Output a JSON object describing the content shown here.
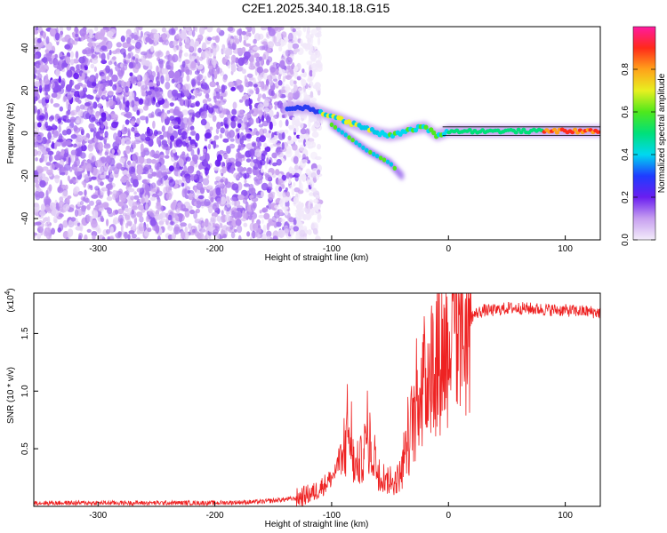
{
  "title": "C2E1.2025.340.18.18.G15",
  "chart_data": [
    {
      "type": "heatmap",
      "xlabel": "Height of straight line (km)",
      "ylabel": "Frequency (Hz)",
      "xlim": [
        -355,
        130
      ],
      "ylim": [
        -50,
        50
      ],
      "xticks": [
        -300,
        -200,
        -100,
        0,
        100
      ],
      "yticks": [
        -40,
        -20,
        0,
        20,
        40
      ],
      "colorbar": {
        "label": "Normalized spectral amplitude",
        "range": [
          0,
          1
        ],
        "ticks": [
          0.0,
          0.2,
          0.4,
          0.6,
          0.8
        ]
      },
      "ridge": {
        "x": [
          -140,
          -130,
          -120,
          -110,
          -100,
          -90,
          -80,
          -70,
          -60,
          -50,
          -40,
          -30,
          -20,
          -10,
          0,
          20,
          50,
          80,
          110,
          130
        ],
        "y": [
          11,
          12,
          12,
          10,
          8,
          6,
          4,
          2,
          0,
          -1,
          0,
          2,
          3,
          -1,
          1,
          1,
          1,
          1,
          1,
          1
        ]
      },
      "branch": {
        "x": [
          -100,
          -90,
          -80,
          -70,
          -60,
          -50,
          -40
        ],
        "y": [
          4,
          0,
          -4,
          -8,
          -11,
          -14,
          -20
        ]
      }
    },
    {
      "type": "line",
      "xlabel": "Height of straight line (km)",
      "ylabel": "SNR (10 * v/v)",
      "exponent_label": "(x10",
      "exponent_power": "4",
      "exponent_close": ")",
      "xlim": [
        -355,
        130
      ],
      "ylim": [
        0,
        18500
      ],
      "xticks": [
        -300,
        -200,
        -100,
        0,
        100
      ],
      "yticks": [
        5000,
        10000,
        15000
      ],
      "ytick_labels": [
        "0.5",
        "1.0",
        "1.5"
      ],
      "color": "#ee2222",
      "series": [
        {
          "x": [
            -355,
            -300,
            -250,
            -200,
            -160,
            -130,
            -115,
            -105,
            -100,
            -90,
            -85,
            -80,
            -75,
            -70,
            -65,
            -60,
            -55,
            -50,
            -45,
            -40,
            -35,
            -30,
            -25,
            -20,
            -15,
            -10,
            -5,
            0,
            5,
            10,
            15,
            20,
            25,
            30,
            40,
            50,
            60,
            80,
            100,
            120,
            130
          ],
          "y": [
            300,
            300,
            300,
            300,
            400,
            700,
            1200,
            2000,
            2500,
            4000,
            6500,
            3000,
            4000,
            5500,
            4500,
            3000,
            2500,
            2000,
            2200,
            3000,
            5000,
            8000,
            10000,
            11000,
            12000,
            13000,
            13500,
            14000,
            14500,
            15000,
            15500,
            16500,
            16800,
            17000,
            17000,
            17200,
            17200,
            17100,
            17000,
            16900,
            16800
          ]
        }
      ]
    }
  ]
}
